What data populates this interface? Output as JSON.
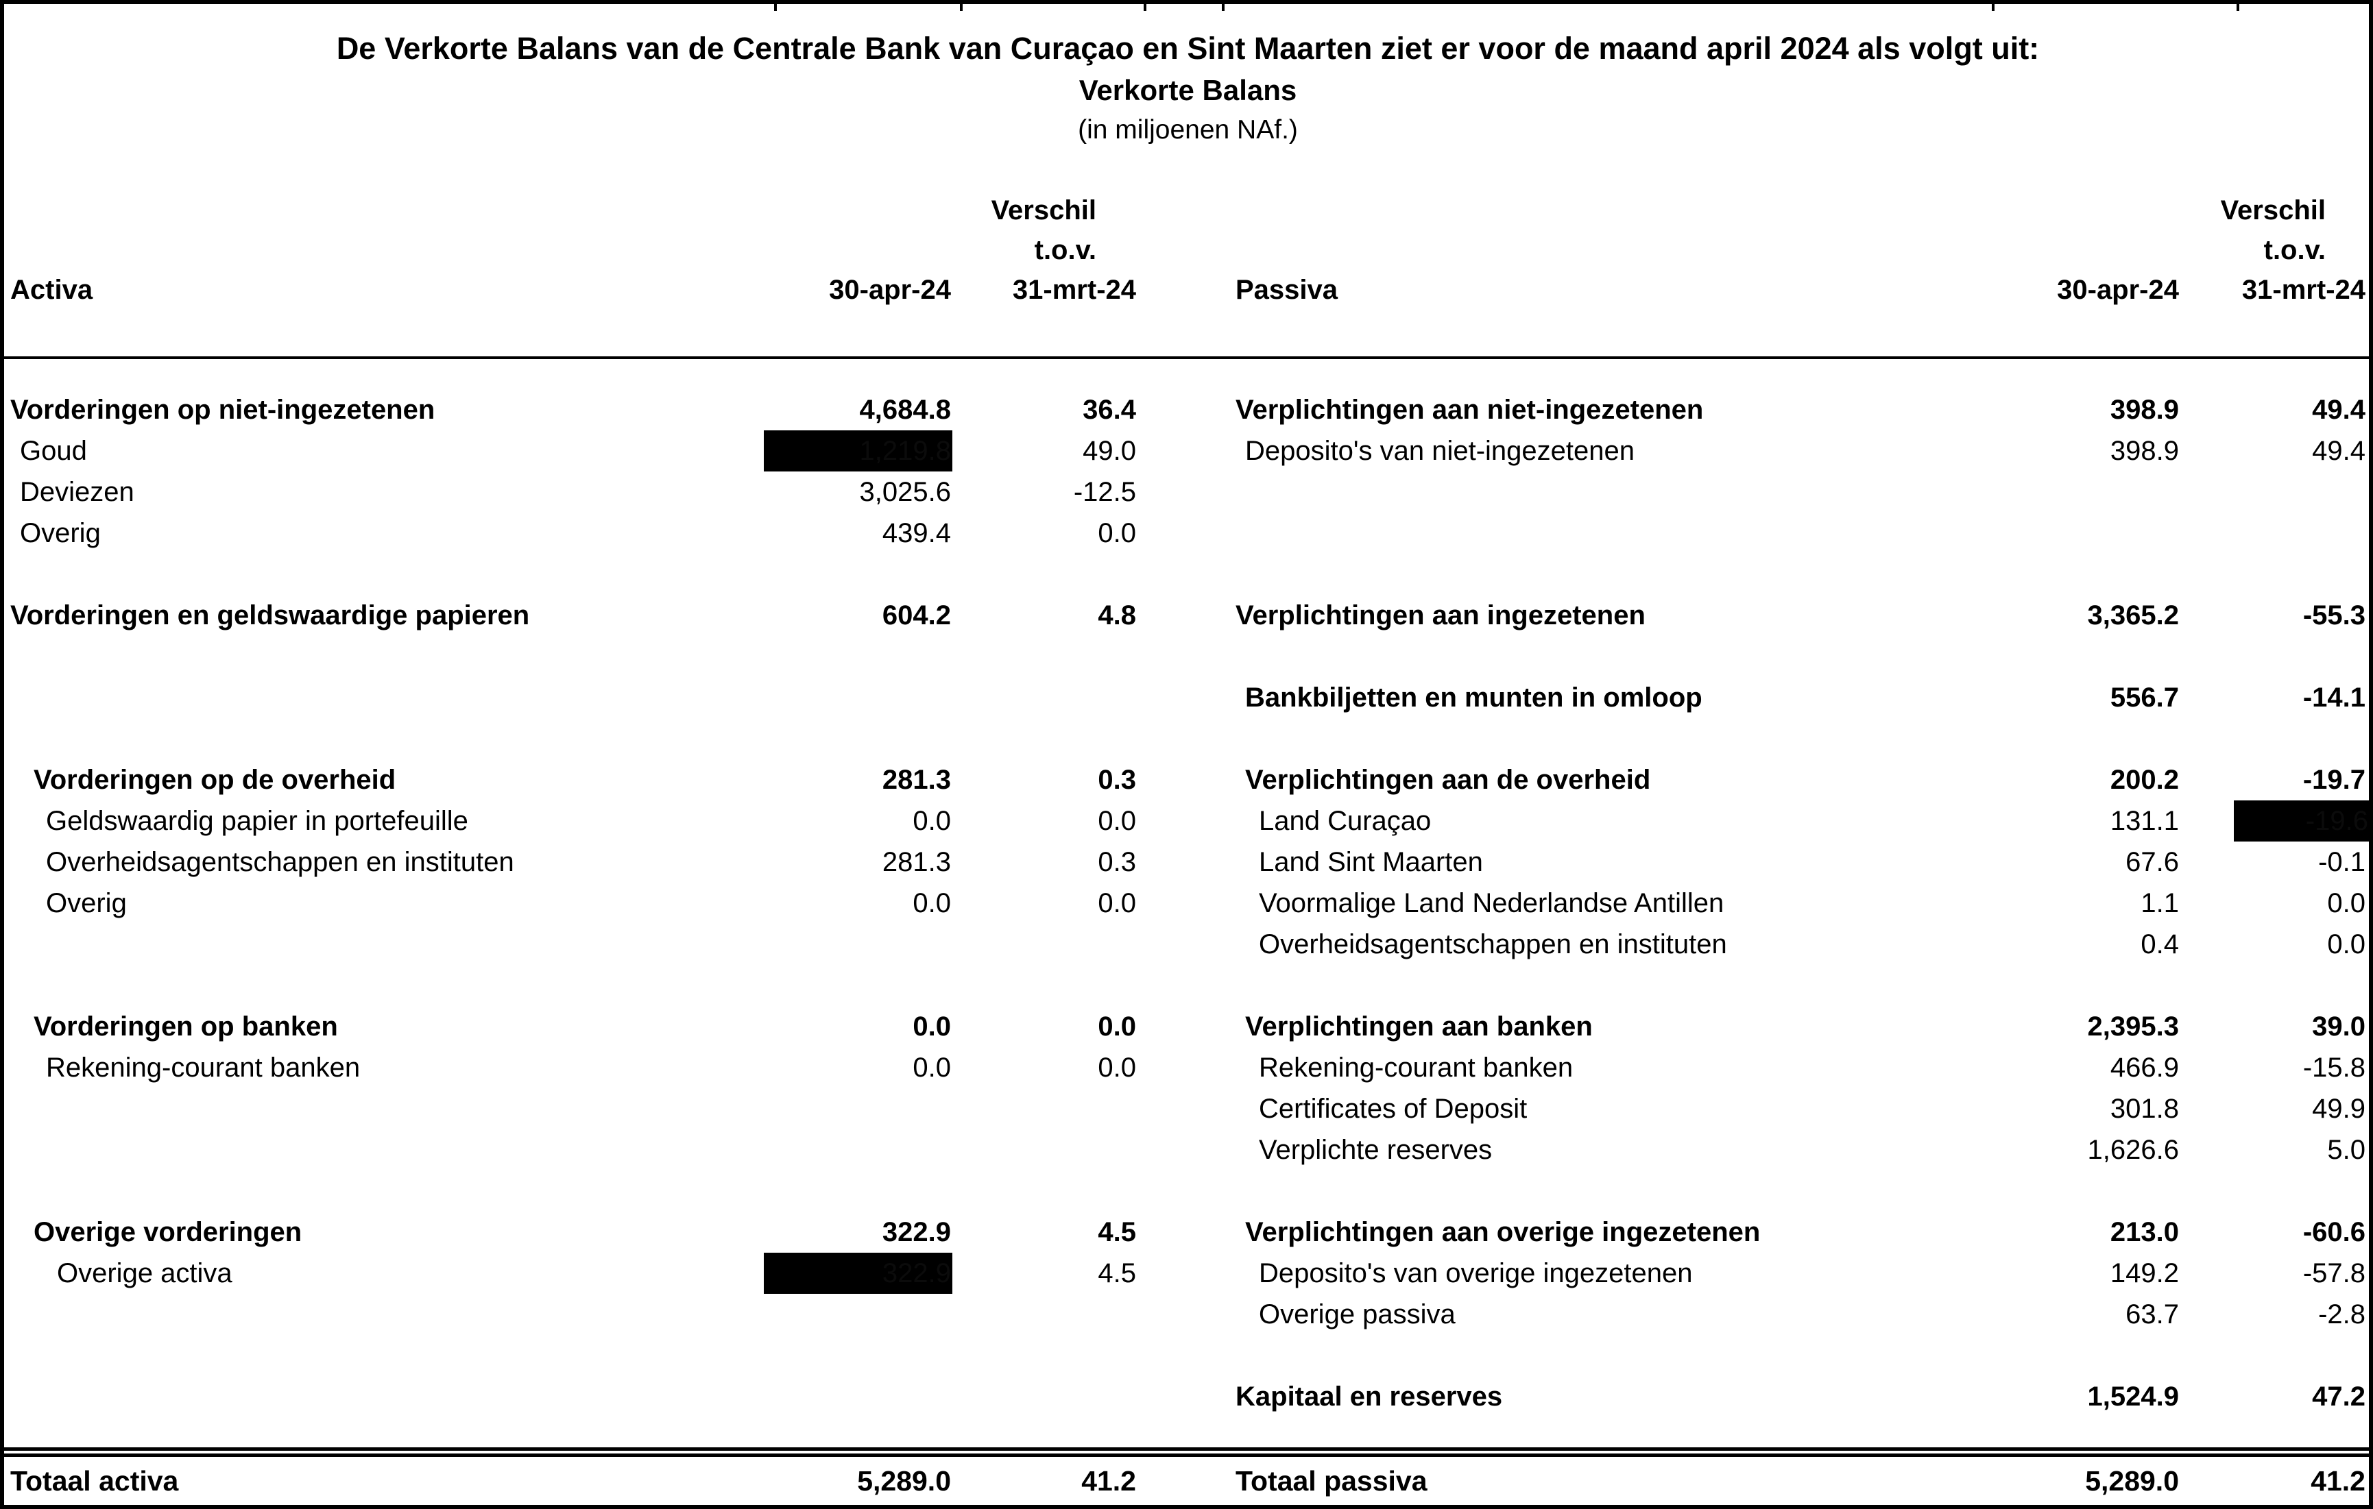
{
  "title": "De Verkorte Balans van de Centrale Bank van Curaçao en Sint Maarten ziet er voor de maand april 2024 als volgt uit:",
  "subtitle": "Verkorte Balans",
  "unit": "(in miljoenen NAf.)",
  "colors": {
    "background": "#ffffff",
    "text": "#000000",
    "redaction": "#000000"
  },
  "header": {
    "left": {
      "section": "Activa",
      "col1": "30-apr-24",
      "col2_line1": "Verschil",
      "col2_line2": "t.o.v.",
      "col2_line3": "31-mrt-24"
    },
    "right": {
      "section": "Passiva",
      "col1": "30-apr-24",
      "col2_line1": "Verschil",
      "col2_line2": "t.o.v.",
      "col2_line3": "31-mrt-24"
    }
  },
  "rows": [
    {
      "left": {
        "label": "Vorderingen op niet-ingezetenen",
        "bold": true,
        "indent": 0,
        "v1": "4,684.8",
        "v2": "36.4"
      },
      "right": {
        "label": "Verplichtingen aan niet-ingezetenen",
        "bold": true,
        "indent": 0,
        "v1": "398.9",
        "v2": "49.4"
      }
    },
    {
      "left": {
        "label": "Goud",
        "indent": 1,
        "v1": "1,219.8",
        "redacted1": true,
        "v2": "49.0"
      },
      "right": {
        "label": "Deposito's van niet-ingezetenen",
        "indent": 1,
        "v1": "398.9",
        "v2": "49.4"
      }
    },
    {
      "left": {
        "label": "Deviezen",
        "indent": 1,
        "v1": "3,025.6",
        "v2": "-12.5"
      }
    },
    {
      "left": {
        "label": "Overig",
        "indent": 1,
        "v1": "439.4",
        "v2": "0.0"
      }
    },
    {},
    {
      "left": {
        "label": "Vorderingen en geldswaardige papieren",
        "bold": true,
        "indent": 0,
        "v1": "604.2",
        "v2": "4.8"
      },
      "right": {
        "label": "Verplichtingen aan ingezetenen",
        "bold": true,
        "indent": 0,
        "v1": "3,365.2",
        "v2": "-55.3"
      }
    },
    {},
    {
      "right": {
        "label": "Bankbiljetten en munten in omloop",
        "bold": true,
        "indent": 1,
        "v1": "556.7",
        "v2": "-14.1"
      }
    },
    {},
    {
      "left": {
        "label": "Vorderingen op de overheid",
        "bold": true,
        "indent": 2,
        "v1": "281.3",
        "v2": "0.3"
      },
      "right": {
        "label": "Verplichtingen aan de overheid",
        "bold": true,
        "indent": 1,
        "v1": "200.2",
        "v2": "-19.7"
      }
    },
    {
      "left": {
        "label": "Geldswaardig papier in portefeuille",
        "indent": 3,
        "v1": "0.0",
        "v2": "0.0"
      },
      "right": {
        "label": "Land Curaçao",
        "indent": 2,
        "v1": "131.1",
        "v2": "-19.6",
        "redacted2": true,
        "bleed": true
      }
    },
    {
      "left": {
        "label": "Overheidsagentschappen en instituten",
        "indent": 3,
        "v1": "281.3",
        "v2": "0.3"
      },
      "right": {
        "label": "Land Sint Maarten",
        "indent": 2,
        "v1": "67.6",
        "v2": "-0.1"
      }
    },
    {
      "left": {
        "label": "Overig",
        "indent": 3,
        "v1": "0.0",
        "v2": "0.0"
      },
      "right": {
        "label": "Voormalige Land Nederlandse Antillen",
        "indent": 2,
        "v1": "1.1",
        "v2": "0.0"
      }
    },
    {
      "right": {
        "label": "Overheidsagentschappen en instituten",
        "indent": 2,
        "v1": "0.4",
        "v2": "0.0"
      }
    },
    {},
    {
      "left": {
        "label": "Vorderingen op banken",
        "bold": true,
        "indent": 2,
        "v1": "0.0",
        "v2": "0.0"
      },
      "right": {
        "label": "Verplichtingen aan banken",
        "bold": true,
        "indent": 1,
        "v1": "2,395.3",
        "v2": "39.0"
      }
    },
    {
      "left": {
        "label": "Rekening-courant banken",
        "indent": 3,
        "v1": "0.0",
        "v2": "0.0"
      },
      "right": {
        "label": "Rekening-courant banken",
        "indent": 2,
        "v1": "466.9",
        "v2": "-15.8"
      }
    },
    {
      "right": {
        "label": "Certificates of Deposit",
        "indent": 2,
        "v1": "301.8",
        "v2": "49.9"
      }
    },
    {
      "right": {
        "label": "Verplichte reserves",
        "indent": 2,
        "v1": "1,626.6",
        "v2": "5.0"
      }
    },
    {},
    {
      "left": {
        "label": "Overige vorderingen",
        "bold": true,
        "indent": 2,
        "v1": "322.9",
        "v2": "4.5"
      },
      "right": {
        "label": "Verplichtingen aan overige ingezetenen",
        "bold": true,
        "indent": 1,
        "v1": "213.0",
        "v2": "-60.6"
      }
    },
    {
      "left": {
        "label": "Overige activa",
        "indent": 4,
        "v1": "322.9",
        "redacted1": true,
        "v2": "4.5"
      },
      "right": {
        "label": "Deposito's van overige ingezetenen",
        "indent": 2,
        "v1": "149.2",
        "v2": "-57.8"
      }
    },
    {
      "right": {
        "label": "Overige passiva",
        "indent": 2,
        "v1": "63.7",
        "v2": "-2.8"
      }
    },
    {},
    {
      "right": {
        "label": "Kapitaal en reserves",
        "bold": true,
        "indent": 0,
        "v1": "1,524.9",
        "v2": "47.2"
      }
    }
  ],
  "totals": {
    "left": {
      "label": "Totaal activa",
      "v1": "5,289.0",
      "v2": "41.2"
    },
    "right": {
      "label": "Totaal passiva",
      "v1": "5,289.0",
      "v2": "41.2"
    }
  }
}
